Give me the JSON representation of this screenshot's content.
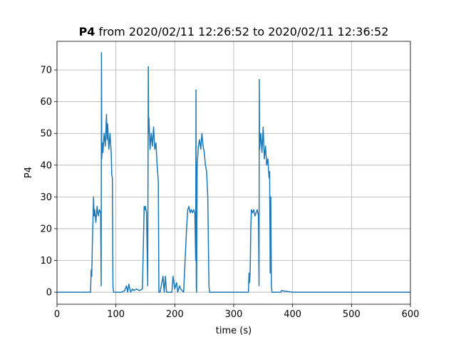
{
  "chart_data": {
    "type": "line",
    "title": [
      "P4",
      "from 2020/02/11 12:26:52 to 2020/02/11 12:36:52"
    ],
    "xlabel": "time (s)",
    "ylabel": "P4",
    "xlim": [
      0,
      600
    ],
    "ylim": [
      -3.8,
      79.0
    ],
    "xticks": [
      0,
      100,
      200,
      300,
      400,
      500,
      600
    ],
    "yticks": [
      0,
      10,
      20,
      30,
      40,
      50,
      60,
      70
    ],
    "grid": true,
    "series": [
      {
        "name": "P4",
        "color": "#1f77b4",
        "x": [
          0,
          57,
          58,
          59,
          60,
          61,
          62,
          63,
          64,
          66,
          68,
          70,
          72,
          74,
          75,
          75.5,
          76,
          77,
          78,
          80,
          82,
          84,
          85,
          86,
          88,
          90,
          92,
          93,
          94,
          95,
          96,
          100,
          110,
          115,
          118,
          120,
          122,
          125,
          128,
          130,
          135,
          140,
          145,
          148,
          149,
          150,
          152,
          154,
          155,
          155.5,
          156,
          158,
          160,
          162,
          164,
          166,
          168,
          170,
          172,
          173,
          174,
          175,
          180,
          182,
          184,
          186,
          190,
          195,
          197,
          200,
          203,
          205,
          208,
          210,
          215,
          220,
          222,
          224,
          226,
          228,
          230,
          232,
          234,
          235.5,
          236,
          236.5,
          237,
          238,
          240,
          242,
          244,
          246,
          248,
          250,
          252,
          254,
          256,
          258,
          259,
          260,
          270,
          300,
          325,
          326,
          327,
          328,
          329,
          330,
          332,
          334,
          336,
          338,
          340,
          342,
          343,
          343.5,
          344,
          346,
          348,
          350,
          352,
          354,
          356,
          358,
          360,
          361,
          362,
          363,
          364,
          365,
          368,
          370,
          380,
          381,
          400,
          600
        ],
        "values": [
          0,
          0,
          7,
          5,
          15,
          22,
          30,
          24,
          26,
          22,
          27,
          24,
          26,
          25,
          2,
          75.4,
          42,
          47,
          44,
          50,
          46,
          56,
          48,
          53,
          45,
          50,
          44,
          37,
          36,
          2,
          0,
          0,
          0,
          0.5,
          2,
          0,
          2.5,
          0,
          1,
          0.5,
          1,
          0.5,
          1,
          27,
          26,
          27,
          25,
          2,
          71,
          50,
          55,
          45,
          50,
          46,
          52,
          45,
          47,
          40,
          35,
          0,
          0,
          0,
          5,
          0,
          5,
          0,
          0,
          0,
          5,
          1,
          3,
          0,
          2,
          1,
          0,
          20,
          26,
          27,
          25,
          26,
          25,
          26,
          25,
          10,
          63.7,
          2,
          0,
          40,
          46,
          48,
          45,
          50,
          46,
          44,
          40,
          38,
          30,
          2,
          0,
          0,
          0,
          0,
          0,
          6,
          3,
          7,
          20,
          26,
          25,
          26,
          24,
          25,
          26,
          24,
          2,
          67,
          45,
          50,
          44,
          52,
          42,
          46,
          40,
          42,
          36,
          38,
          6,
          30,
          2,
          0,
          0,
          0,
          0,
          0.5,
          0,
          0
        ]
      }
    ]
  }
}
